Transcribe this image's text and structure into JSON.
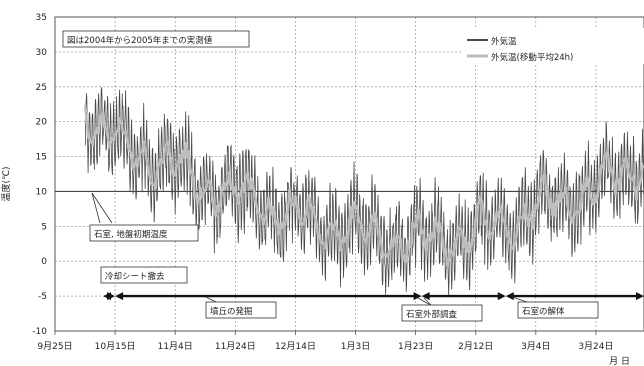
{
  "chart_data": {
    "type": "line",
    "ylabel": "温度(℃)",
    "xlabel": "月 日",
    "ylim": [
      -10,
      35
    ],
    "y_ticks": [
      35,
      30,
      25,
      20,
      15,
      10,
      5,
      0,
      -5,
      -10
    ],
    "x_ticks": [
      "9月25日",
      "10月15日",
      "11月4日",
      "11月24日",
      "12月14日",
      "1月3日",
      "1月23日",
      "2月12日",
      "3月4日",
      "3月24日"
    ],
    "x_tick_days": [
      0,
      20,
      40,
      60,
      80,
      100,
      120,
      140,
      160,
      180
    ],
    "xlim_days": [
      0,
      196
    ],
    "grid": true,
    "legend_position": "top-right",
    "annotation_box": "図は2004年から2005年までの実測値",
    "series": [
      {
        "name": "外気温",
        "color": "#4a4a4a",
        "values_every_5_days": [
          [
            10,
            22
          ],
          [
            15,
            19
          ],
          [
            20,
            17
          ],
          [
            25,
            16
          ],
          [
            30,
            15.5
          ],
          [
            35,
            14
          ],
          [
            40,
            13.5
          ],
          [
            45,
            12.5
          ],
          [
            50,
            11
          ],
          [
            55,
            10.5
          ],
          [
            60,
            9.5
          ],
          [
            65,
            9
          ],
          [
            70,
            8
          ],
          [
            75,
            7
          ],
          [
            80,
            6.5
          ],
          [
            85,
            6
          ],
          [
            90,
            5.5
          ],
          [
            95,
            5
          ],
          [
            100,
            4.5
          ],
          [
            105,
            4
          ],
          [
            110,
            3.5
          ],
          [
            115,
            3.5
          ],
          [
            120,
            3
          ],
          [
            125,
            3
          ],
          [
            130,
            3.5
          ],
          [
            135,
            3.5
          ],
          [
            140,
            4
          ],
          [
            145,
            5
          ],
          [
            150,
            5.5
          ],
          [
            155,
            6.5
          ],
          [
            160,
            7.5
          ],
          [
            165,
            8
          ],
          [
            170,
            9
          ],
          [
            175,
            9.5
          ],
          [
            180,
            10.5
          ],
          [
            185,
            11.5
          ],
          [
            190,
            12.5
          ],
          [
            196,
            14
          ]
        ],
        "daily_range_degC": 10
      },
      {
        "name": "外気温(移動平均24h)",
        "color": "#bdbdbd"
      },
      {
        "name": "石室, 地盤初期温度",
        "color": "#444444",
        "constant_value": 10
      }
    ],
    "labels": {
      "initial_temp": "石室, 地盤初期温度",
      "cooling_sheet": "冷却シート撤去",
      "mound": "墳丘の発掘",
      "exterior_survey": "石室外部調査",
      "dismantle": "石室の解体"
    },
    "periods": [
      {
        "label": "冷却シート撤去",
        "start_day": 16,
        "end_day": 20,
        "y": -5
      },
      {
        "label": "墳丘の発掘",
        "start_day": 20,
        "end_day": 122,
        "y": -5
      },
      {
        "label": "石室外部調査",
        "start_day": 122,
        "end_day": 150,
        "y": -5
      },
      {
        "label": "石室の解体",
        "start_day": 150,
        "end_day": 196,
        "y": -5
      }
    ]
  }
}
